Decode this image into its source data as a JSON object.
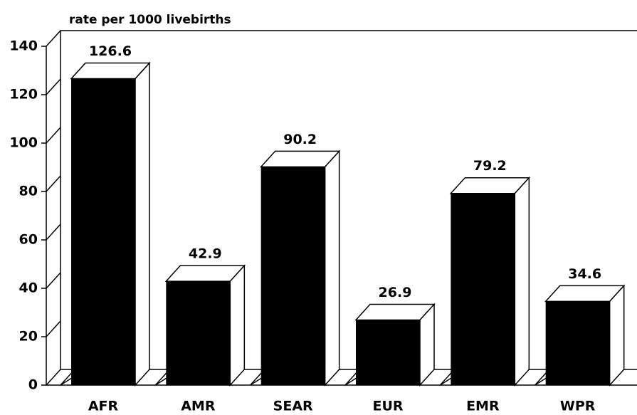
{
  "chart_data": {
    "type": "bar3d",
    "axis_title": "rate per 1000 livebirths",
    "categories": [
      "AFR",
      "AMR",
      "SEAR",
      "EUR",
      "EMR",
      "WPR"
    ],
    "values": [
      126.6,
      42.9,
      90.2,
      26.9,
      79.2,
      34.6
    ],
    "color": "#000000",
    "ylim": [
      0,
      140
    ],
    "yticks": [
      0,
      20,
      40,
      60,
      80,
      100,
      120,
      140
    ],
    "grid": false
  }
}
